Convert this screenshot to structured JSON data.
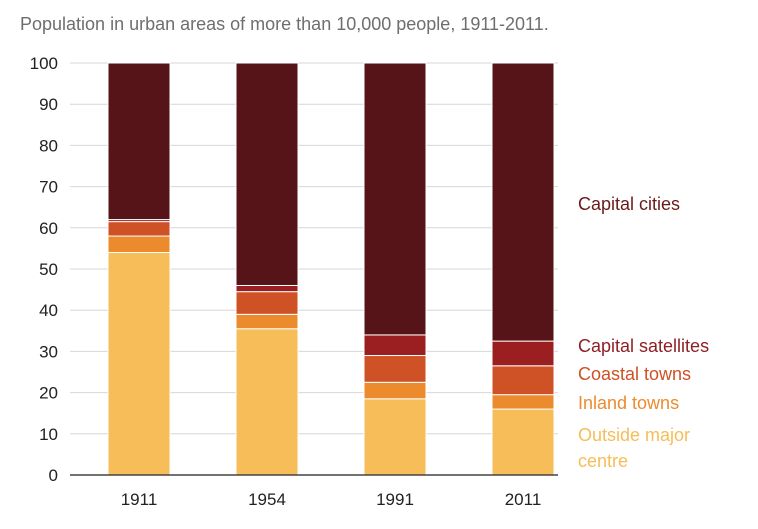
{
  "chart_data": {
    "type": "bar",
    "stacked": true,
    "subtitle": "Population in urban areas of more than 10,000 people, 1911-2011.",
    "categories": [
      "1911",
      "1954",
      "1991",
      "2011"
    ],
    "ylim": [
      0,
      100
    ],
    "yticks": [
      0,
      10,
      20,
      30,
      40,
      50,
      60,
      70,
      80,
      90,
      100
    ],
    "grid": true,
    "legend": "right",
    "series": [
      {
        "name": "Outside major centre",
        "values": [
          54,
          35.5,
          18.5,
          16
        ],
        "color": "#f6bd59"
      },
      {
        "name": "Inland towns",
        "values": [
          4,
          3.5,
          4,
          3.5
        ],
        "color": "#ec8b2e"
      },
      {
        "name": "Coastal towns",
        "values": [
          3.5,
          5.5,
          6.5,
          7
        ],
        "color": "#cf5126"
      },
      {
        "name": "Capital satellites",
        "values": [
          0.5,
          1.5,
          5,
          6
        ],
        "color": "#9b1f20"
      },
      {
        "name": "Capital cities",
        "values": [
          38,
          54,
          66,
          67.5
        ],
        "color": "#561418"
      }
    ],
    "legend_entries": [
      {
        "lines": [
          "Capital cities"
        ],
        "color": "#6b1a1a"
      },
      {
        "lines": [
          "Capital satellites"
        ],
        "color": "#8e1f24"
      },
      {
        "lines": [
          "Coastal towns"
        ],
        "color": "#cf5126"
      },
      {
        "lines": [
          "Inland towns"
        ],
        "color": "#ec8b2e"
      },
      {
        "lines": [
          "Outside major",
          "centre"
        ],
        "color": "#f6bd59"
      }
    ]
  }
}
